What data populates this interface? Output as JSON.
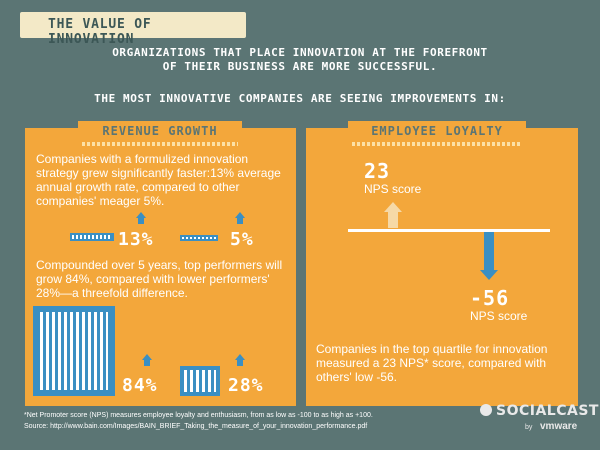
{
  "title": "THE VALUE OF INNOVATION",
  "headline1": "ORGANIZATIONS THAT PLACE INNOVATION AT THE FOREFRONT",
  "headline2": "OF THEIR BUSINESS ARE MORE SUCCESSFUL.",
  "headline3": "THE MOST INNOVATIVE COMPANIES ARE SEEING IMPROVEMENTS IN:",
  "revenue": {
    "title": "REVENUE GROWTH",
    "text1": "Companies with a formulized innovation strategy grew significantly faster:13% average annual growth rate, compared to other companies' meager 5%.",
    "stat_a": "13%",
    "stat_b": "5%",
    "text2": "Compounded over 5 years, top performers will grow 84%, compared with lower performers' 28%—a threefold difference.",
    "stat_c": "84%",
    "stat_d": "28%"
  },
  "loyalty": {
    "title": "EMPLOYEE LOYALTY",
    "value_top": "23",
    "label_top": "NPS score",
    "value_bottom": "-56",
    "label_bottom": "NPS score",
    "text": "Companies in the top quartile for innovation measured a 23 NPS* score, compared with others' low -56."
  },
  "footnote1": "*Net Promoter score (NPS) measures employee loyalty and enthusiasm, from as low as -100 to as high as +100.",
  "footnote2": "Source: http://www.bain.com/Images/BAIN_BRIEF_Taking_the_measure_of_your_innovation_performance.pdf",
  "brand": "SOCIALCAST",
  "brand_by": "by",
  "brand_parent": "vmware",
  "colors": {
    "background": "#5b7574",
    "panel": "#f3a73b",
    "accent_blue": "#3a8fc3",
    "banner": "#f3e9c7"
  }
}
